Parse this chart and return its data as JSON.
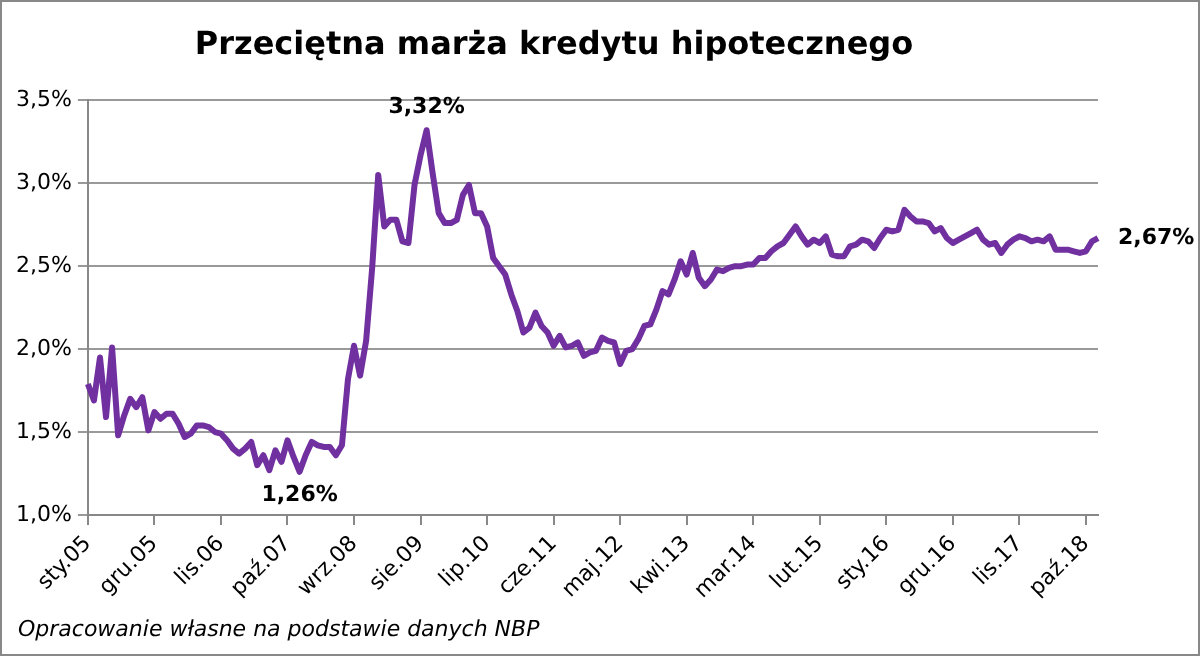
{
  "chart_data": {
    "type": "line",
    "title": "Przeciętna marża kredytu hipotecznego",
    "categories": [
      "sty.05",
      null,
      null,
      null,
      null,
      null,
      null,
      null,
      null,
      null,
      null,
      "gru.05",
      null,
      null,
      null,
      null,
      null,
      null,
      null,
      null,
      null,
      null,
      "lis.06",
      null,
      null,
      null,
      null,
      null,
      null,
      null,
      null,
      null,
      null,
      "paź.07",
      null,
      null,
      null,
      null,
      null,
      null,
      null,
      null,
      null,
      null,
      "wrz.08",
      null,
      null,
      null,
      null,
      null,
      null,
      null,
      null,
      null,
      null,
      "sie.09",
      null,
      null,
      null,
      null,
      null,
      null,
      null,
      null,
      null,
      null,
      "lip.10",
      null,
      null,
      null,
      null,
      null,
      null,
      null,
      null,
      null,
      null,
      "cze.11",
      null,
      null,
      null,
      null,
      null,
      null,
      null,
      null,
      null,
      null,
      "maj.12",
      null,
      null,
      null,
      null,
      null,
      null,
      null,
      null,
      null,
      null,
      "kwi.13",
      null,
      null,
      null,
      null,
      null,
      null,
      null,
      null,
      null,
      null,
      "mar.14",
      null,
      null,
      null,
      null,
      null,
      null,
      null,
      null,
      null,
      null,
      "lut.15",
      null,
      null,
      null,
      null,
      null,
      null,
      null,
      null,
      null,
      null,
      "sty.16",
      null,
      null,
      null,
      null,
      null,
      null,
      null,
      null,
      null,
      null,
      "gru.16",
      null,
      null,
      null,
      null,
      null,
      null,
      null,
      null,
      null,
      null,
      "lis.17",
      null,
      null,
      null,
      null,
      null,
      null,
      null,
      null,
      null,
      null,
      "paź.18",
      null,
      null
    ],
    "series": [
      {
        "color": "#7030a0",
        "values": [
          1.79,
          1.69,
          1.95,
          1.59,
          2.01,
          1.48,
          1.6,
          1.7,
          1.65,
          1.71,
          1.51,
          1.62,
          1.58,
          1.61,
          1.61,
          1.55,
          1.47,
          1.49,
          1.54,
          1.54,
          1.53,
          1.5,
          1.49,
          1.45,
          1.4,
          1.37,
          1.4,
          1.44,
          1.3,
          1.36,
          1.27,
          1.39,
          1.32,
          1.45,
          1.35,
          1.26,
          1.36,
          1.44,
          1.42,
          1.41,
          1.41,
          1.36,
          1.42,
          1.82,
          2.02,
          1.84,
          2.05,
          2.49,
          3.05,
          2.74,
          2.78,
          2.78,
          2.65,
          2.64,
          2.99,
          3.17,
          3.32,
          3.06,
          2.82,
          2.76,
          2.76,
          2.78,
          2.93,
          2.99,
          2.82,
          2.82,
          2.74,
          2.55,
          2.5,
          2.45,
          2.33,
          2.23,
          2.1,
          2.13,
          2.22,
          2.14,
          2.1,
          2.02,
          2.08,
          2.01,
          2.02,
          2.04,
          1.96,
          1.98,
          1.99,
          2.07,
          2.05,
          2.04,
          1.91,
          1.99,
          2.0,
          2.06,
          2.14,
          2.15,
          2.24,
          2.35,
          2.33,
          2.42,
          2.53,
          2.45,
          2.58,
          2.43,
          2.38,
          2.42,
          2.48,
          2.47,
          2.49,
          2.5,
          2.5,
          2.51,
          2.51,
          2.55,
          2.55,
          2.59,
          2.62,
          2.64,
          2.69,
          2.74,
          2.68,
          2.63,
          2.66,
          2.64,
          2.68,
          2.57,
          2.56,
          2.56,
          2.62,
          2.63,
          2.66,
          2.65,
          2.61,
          2.67,
          2.72,
          2.71,
          2.72,
          2.84,
          2.8,
          2.77,
          2.77,
          2.76,
          2.71,
          2.73,
          2.67,
          2.64,
          2.66,
          2.68,
          2.7,
          2.72,
          2.66,
          2.63,
          2.64,
          2.58,
          2.63,
          2.66,
          2.68,
          2.67,
          2.65,
          2.66,
          2.65,
          2.68,
          2.6,
          2.6,
          2.6,
          2.59,
          2.58,
          2.59,
          2.65,
          2.67
        ],
        "value_labels": [
          null,
          null,
          null,
          null,
          null,
          null,
          null,
          null,
          null,
          null,
          null,
          null,
          null,
          null,
          null,
          null,
          null,
          null,
          null,
          null,
          null,
          null,
          null,
          null,
          null,
          null,
          null,
          null,
          null,
          null,
          null,
          null,
          null,
          null,
          null,
          "1,26%",
          null,
          null,
          null,
          null,
          null,
          null,
          null,
          null,
          null,
          null,
          null,
          null,
          null,
          null,
          null,
          null,
          null,
          null,
          null,
          null,
          "3,32%",
          null,
          null,
          null,
          null,
          null,
          null,
          null,
          null,
          null,
          null,
          null,
          null,
          null,
          null,
          null,
          null,
          null,
          null,
          null,
          null,
          null,
          null,
          null,
          null,
          null,
          null,
          null,
          null,
          null,
          null,
          null,
          null,
          null,
          null,
          null,
          null,
          null,
          null,
          null,
          null,
          null,
          null,
          null,
          null,
          null,
          null,
          null,
          null,
          null,
          null,
          null,
          null,
          null,
          null,
          null,
          null,
          null,
          null,
          null,
          null,
          null,
          null,
          null,
          null,
          null,
          null,
          null,
          null,
          null,
          null,
          null,
          null,
          null,
          null,
          null,
          null,
          null,
          null,
          null,
          null,
          null,
          null,
          null,
          null,
          null,
          null,
          null,
          null,
          null,
          null,
          null,
          null,
          null,
          null,
          null,
          null,
          null,
          null,
          null,
          null,
          null,
          null,
          null,
          null,
          null,
          null,
          null,
          null,
          null,
          null,
          "2,67%"
        ]
      }
    ],
    "ylim": [
      1,
      3.5
    ],
    "yticks": [
      {
        "value": 1,
        "label": "1,0%"
      },
      {
        "value": 1.5,
        "label": "1,5%"
      },
      {
        "value": 2,
        "label": "2,0%"
      },
      {
        "value": 2.5,
        "label": "2,5%"
      },
      {
        "value": 3,
        "label": "3,0%"
      },
      {
        "value": 3.5,
        "label": "3,5%"
      }
    ],
    "grid": "y",
    "legend": false,
    "marker": "none",
    "line_style": "solid",
    "annotations": [
      "Opracowanie własne na podstawie danych NBP"
    ]
  }
}
